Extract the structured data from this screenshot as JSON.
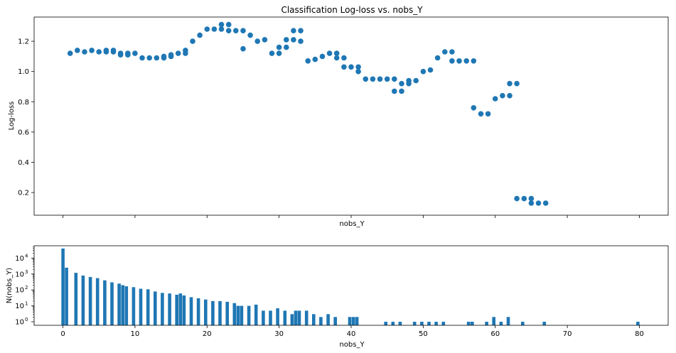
{
  "chart_data": [
    {
      "type": "scatter",
      "title": "Classification Log-loss vs. nobs_Y",
      "xlabel": "nobs_Y",
      "ylabel": "Log-loss",
      "xlim": [
        -4,
        84
      ],
      "ylim": [
        0.05,
        1.36
      ],
      "yticks": [
        "0.2",
        "0.4",
        "0.6",
        "0.8",
        "1.0",
        "1.2"
      ],
      "ytick_values": [
        0.2,
        0.4,
        0.6,
        0.8,
        1.0,
        1.2
      ],
      "color": "#1f77b4",
      "points": [
        [
          1,
          1.12
        ],
        [
          2,
          1.14
        ],
        [
          3,
          1.13
        ],
        [
          4,
          1.14
        ],
        [
          5,
          1.13
        ],
        [
          6,
          1.13
        ],
        [
          6,
          1.14
        ],
        [
          7,
          1.13
        ],
        [
          7,
          1.14
        ],
        [
          8,
          1.12
        ],
        [
          8,
          1.11
        ],
        [
          9,
          1.12
        ],
        [
          9,
          1.11
        ],
        [
          10,
          1.12
        ],
        [
          11,
          1.09
        ],
        [
          12,
          1.09
        ],
        [
          13,
          1.09
        ],
        [
          14,
          1.09
        ],
        [
          14,
          1.1
        ],
        [
          15,
          1.1
        ],
        [
          15,
          1.11
        ],
        [
          16,
          1.12
        ],
        [
          17,
          1.12
        ],
        [
          17,
          1.14
        ],
        [
          18,
          1.2
        ],
        [
          19,
          1.24
        ],
        [
          20,
          1.28
        ],
        [
          21,
          1.28
        ],
        [
          22,
          1.31
        ],
        [
          22,
          1.28
        ],
        [
          23,
          1.31
        ],
        [
          23,
          1.27
        ],
        [
          24,
          1.27
        ],
        [
          25,
          1.27
        ],
        [
          25,
          1.15
        ],
        [
          26,
          1.24
        ],
        [
          27,
          1.2
        ],
        [
          28,
          1.21
        ],
        [
          29,
          1.12
        ],
        [
          30,
          1.12
        ],
        [
          30,
          1.16
        ],
        [
          31,
          1.16
        ],
        [
          31,
          1.21
        ],
        [
          32,
          1.27
        ],
        [
          32,
          1.21
        ],
        [
          33,
          1.27
        ],
        [
          33,
          1.2
        ],
        [
          34,
          1.07
        ],
        [
          35,
          1.08
        ],
        [
          36,
          1.1
        ],
        [
          37,
          1.12
        ],
        [
          38,
          1.12
        ],
        [
          38,
          1.09
        ],
        [
          39,
          1.09
        ],
        [
          39,
          1.03
        ],
        [
          40,
          1.03
        ],
        [
          41,
          1.03
        ],
        [
          41,
          1.0
        ],
        [
          42,
          0.95
        ],
        [
          43,
          0.95
        ],
        [
          44,
          0.95
        ],
        [
          45,
          0.95
        ],
        [
          46,
          0.95
        ],
        [
          46,
          0.87
        ],
        [
          47,
          0.87
        ],
        [
          47,
          0.92
        ],
        [
          48,
          0.92
        ],
        [
          48,
          0.94
        ],
        [
          49,
          0.94
        ],
        [
          50,
          1.0
        ],
        [
          51,
          1.01
        ],
        [
          52,
          1.09
        ],
        [
          53,
          1.13
        ],
        [
          54,
          1.13
        ],
        [
          54,
          1.07
        ],
        [
          55,
          1.07
        ],
        [
          56,
          1.07
        ],
        [
          57,
          1.07
        ],
        [
          57,
          0.76
        ],
        [
          58,
          0.72
        ],
        [
          59,
          0.72
        ],
        [
          60,
          0.82
        ],
        [
          61,
          0.84
        ],
        [
          62,
          0.84
        ],
        [
          62,
          0.92
        ],
        [
          63,
          0.92
        ],
        [
          63,
          0.16
        ],
        [
          64,
          0.16
        ],
        [
          65,
          0.16
        ],
        [
          65,
          0.13
        ],
        [
          66,
          0.13
        ],
        [
          67,
          0.13
        ]
      ]
    },
    {
      "type": "bar",
      "xlabel": "nobs_Y",
      "ylabel": "N(nobs_Y)",
      "yscale": "log",
      "xlim": [
        -4,
        84
      ],
      "ylim": [
        0.6,
        60000
      ],
      "xticks": [
        "0",
        "10",
        "20",
        "30",
        "40",
        "50",
        "60",
        "70",
        "80"
      ],
      "xtick_values": [
        0,
        10,
        20,
        30,
        40,
        50,
        60,
        70,
        80
      ],
      "yticks": [
        "10^0",
        "10^1",
        "10^2",
        "10^3",
        "10^4"
      ],
      "ytick_values": [
        1,
        10,
        100,
        1000,
        10000
      ],
      "color": "#1f77b4",
      "bars": [
        [
          0,
          40000
        ],
        [
          0.5,
          2500
        ],
        [
          1.8,
          1200
        ],
        [
          2.8,
          800
        ],
        [
          3.8,
          650
        ],
        [
          4.8,
          550
        ],
        [
          5.8,
          400
        ],
        [
          6.8,
          300
        ],
        [
          7.8,
          250
        ],
        [
          8.3,
          200
        ],
        [
          8.8,
          170
        ],
        [
          9.8,
          150
        ],
        [
          10.8,
          120
        ],
        [
          11.8,
          110
        ],
        [
          12.8,
          80
        ],
        [
          13.8,
          65
        ],
        [
          14.8,
          60
        ],
        [
          15.8,
          50
        ],
        [
          16.3,
          60
        ],
        [
          16.8,
          45
        ],
        [
          17.8,
          35
        ],
        [
          18.8,
          30
        ],
        [
          19.8,
          25
        ],
        [
          20.8,
          20
        ],
        [
          21.8,
          20
        ],
        [
          22.8,
          18
        ],
        [
          23.8,
          15
        ],
        [
          24.3,
          10
        ],
        [
          24.8,
          10
        ],
        [
          25.8,
          10
        ],
        [
          26.8,
          12
        ],
        [
          27.8,
          5
        ],
        [
          28.8,
          5
        ],
        [
          29.8,
          7
        ],
        [
          30.8,
          5
        ],
        [
          31.8,
          3
        ],
        [
          32.3,
          5
        ],
        [
          32.8,
          5
        ],
        [
          33.8,
          5
        ],
        [
          34.8,
          3
        ],
        [
          35.8,
          2
        ],
        [
          36.8,
          3
        ],
        [
          37.8,
          2
        ],
        [
          39.8,
          2
        ],
        [
          40.3,
          2
        ],
        [
          40.8,
          2
        ],
        [
          44.8,
          1
        ],
        [
          45.8,
          1
        ],
        [
          46.8,
          1
        ],
        [
          48.8,
          1
        ],
        [
          49.8,
          1
        ],
        [
          50.8,
          1
        ],
        [
          51.8,
          1
        ],
        [
          52.8,
          1
        ],
        [
          56.3,
          1
        ],
        [
          56.8,
          1
        ],
        [
          58.8,
          1
        ],
        [
          59.8,
          2
        ],
        [
          60.8,
          1
        ],
        [
          61.8,
          2
        ],
        [
          63.8,
          1
        ],
        [
          66.8,
          1
        ],
        [
          79.8,
          1
        ]
      ]
    }
  ]
}
